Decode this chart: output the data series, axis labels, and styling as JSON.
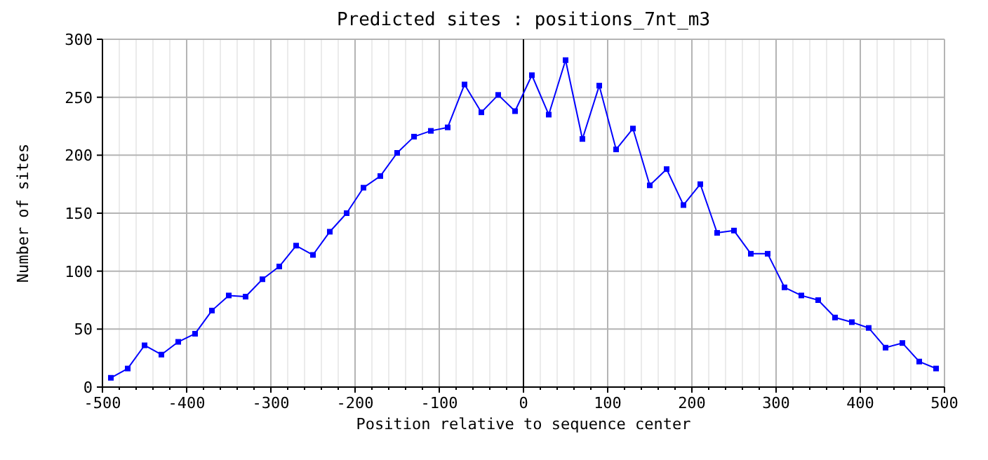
{
  "chart_data": {
    "type": "line",
    "title": "Predicted sites : positions_7nt_m3",
    "xlabel": "Position relative to sequence center",
    "ylabel": "Number of sites",
    "x": [
      -490,
      -470,
      -450,
      -430,
      -410,
      -390,
      -370,
      -350,
      -330,
      -310,
      -290,
      -270,
      -250,
      -230,
      -210,
      -190,
      -170,
      -150,
      -130,
      -110,
      -90,
      -70,
      -50,
      -30,
      -10,
      10,
      30,
      50,
      70,
      90,
      110,
      130,
      150,
      170,
      190,
      210,
      230,
      250,
      270,
      290,
      310,
      330,
      350,
      370,
      390,
      410,
      430,
      450,
      470,
      490
    ],
    "series": [
      {
        "color": "#0000ff",
        "values": [
          8,
          16,
          36,
          28,
          39,
          46,
          66,
          79,
          78,
          93,
          104,
          122,
          114,
          134,
          150,
          172,
          182,
          202,
          216,
          221,
          224,
          261,
          237,
          252,
          238,
          269,
          235,
          282,
          214,
          260,
          205,
          223,
          174,
          188,
          157,
          175,
          133,
          135,
          115,
          115,
          86,
          79,
          75,
          60,
          56,
          51,
          34,
          38,
          22,
          16
        ]
      }
    ],
    "xlim": [
      -500,
      500
    ],
    "xticks": [
      -500,
      {
        "value": -480,
        "label": null
      },
      {
        "value": -460,
        "label": null
      },
      {
        "value": -440,
        "label": null
      },
      {
        "value": -420,
        "label": null
      },
      -400,
      {
        "value": -380,
        "label": null
      },
      {
        "value": -360,
        "label": null
      },
      {
        "value": -340,
        "label": null
      },
      {
        "value": -320,
        "label": null
      },
      -300,
      {
        "value": -280,
        "label": null
      },
      {
        "value": -260,
        "label": null
      },
      {
        "value": -240,
        "label": null
      },
      {
        "value": -220,
        "label": null
      },
      -200,
      {
        "value": -180,
        "label": null
      },
      {
        "value": -160,
        "label": null
      },
      {
        "value": -140,
        "label": null
      },
      {
        "value": -120,
        "label": null
      },
      -100,
      {
        "value": -80,
        "label": null
      },
      {
        "value": -60,
        "label": null
      },
      {
        "value": -40,
        "label": null
      },
      {
        "value": -20,
        "label": null
      },
      0,
      {
        "value": 20,
        "label": null
      },
      {
        "value": 40,
        "label": null
      },
      {
        "value": 60,
        "label": null
      },
      {
        "value": 80,
        "label": null
      },
      100,
      {
        "value": 120,
        "label": null
      },
      {
        "value": 140,
        "label": null
      },
      {
        "value": 160,
        "label": null
      },
      {
        "value": 180,
        "label": null
      },
      200,
      {
        "value": 220,
        "label": null
      },
      {
        "value": 240,
        "label": null
      },
      {
        "value": 260,
        "label": null
      },
      {
        "value": 280,
        "label": null
      },
      300,
      {
        "value": 320,
        "label": null
      },
      {
        "value": 340,
        "label": null
      },
      {
        "value": 360,
        "label": null
      },
      {
        "value": 380,
        "label": null
      },
      400,
      {
        "value": 420,
        "label": null
      },
      {
        "value": 440,
        "label": null
      },
      {
        "value": 460,
        "label": null
      },
      {
        "value": 480,
        "label": null
      },
      500
    ],
    "ylim": [
      0,
      300
    ],
    "yticks": [
      0,
      50,
      100,
      150,
      200,
      250,
      300
    ],
    "ref_lines": [
      {
        "axis": "x",
        "value": 0,
        "color": "#000000"
      }
    ],
    "grid": true,
    "marker": "square",
    "line_style": "solid"
  }
}
